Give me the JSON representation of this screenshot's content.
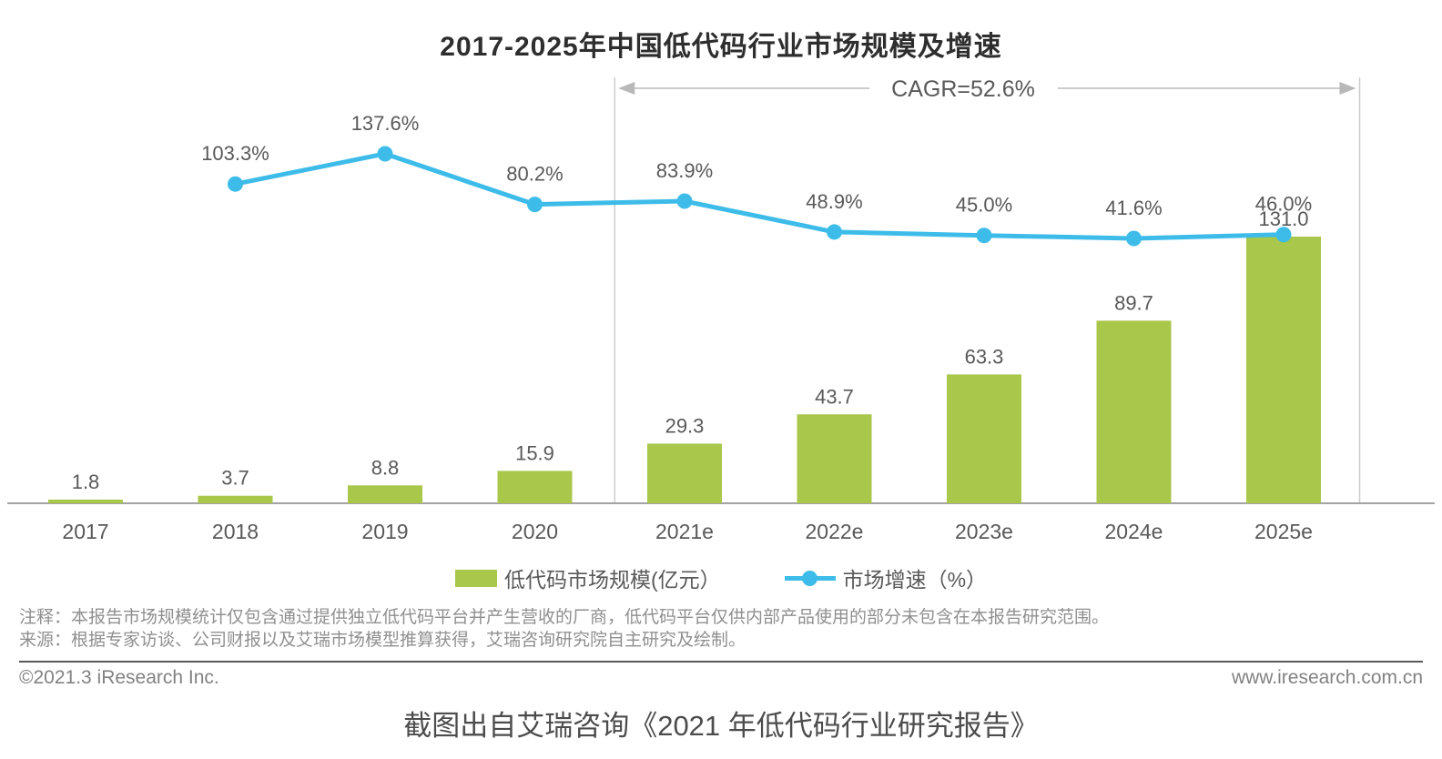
{
  "title": "2017-2025年中国低代码行业市场规模及增速",
  "annotation": {
    "cagr_label": "CAGR=52.6%"
  },
  "legend": {
    "bars_label": "低代码市场规模(亿元）",
    "line_label": "市场增速（%）"
  },
  "notes": {
    "note1": "注释：本报告市场规模统计仅包含通过提供独立低代码平台并产生营收的厂商，低代码平台仅供内部产品使用的部分未包含在本报告研究范围。",
    "note2": "来源：根据专家访谈、公司财报以及艾瑞市场模型推算获得，艾瑞咨询研究院自主研究及绘制。"
  },
  "footer": {
    "copyright": "©2021.3 iResearch Inc.",
    "website": "www.iresearch.com.cn"
  },
  "caption": "截图出自艾瑞咨询《2021 年低代码行业研究报告》",
  "colors": {
    "bar": "#a8c74b",
    "line": "#3ebce9",
    "axis": "#a3a3a3",
    "bracket": "#cccccc",
    "arrowhead": "#b8b8b8",
    "data_label": "#595959",
    "tick_label": "#595959",
    "cagr_text": "#595959"
  },
  "chart_data": {
    "type": "bar",
    "combo": "bar+line",
    "title": "2017-2025年中国低代码行业市场规模及增速",
    "categories": [
      "2017",
      "2018",
      "2019",
      "2020",
      "2021e",
      "2022e",
      "2023e",
      "2024e",
      "2025e"
    ],
    "series": [
      {
        "name": "低代码市场规模(亿元）",
        "type": "bar",
        "values": [
          1.8,
          3.7,
          8.8,
          15.9,
          29.3,
          43.7,
          63.3,
          89.7,
          131.0
        ]
      },
      {
        "name": "市场增速（%）",
        "type": "line",
        "x": [
          "2018",
          "2019",
          "2020",
          "2021e",
          "2022e",
          "2023e",
          "2024e",
          "2025e"
        ],
        "values": [
          103.3,
          137.6,
          80.2,
          83.9,
          48.9,
          45.0,
          41.6,
          46.0
        ]
      }
    ],
    "annotations": [
      {
        "text": "CAGR=52.6%",
        "span_categories": [
          "2021e",
          "2025e"
        ],
        "style": "double-arrow-bracket"
      }
    ],
    "xlabel": "",
    "ylabel": "",
    "grid": false,
    "y_axis_visible": false,
    "legend_position": "bottom",
    "data_labels": true
  }
}
